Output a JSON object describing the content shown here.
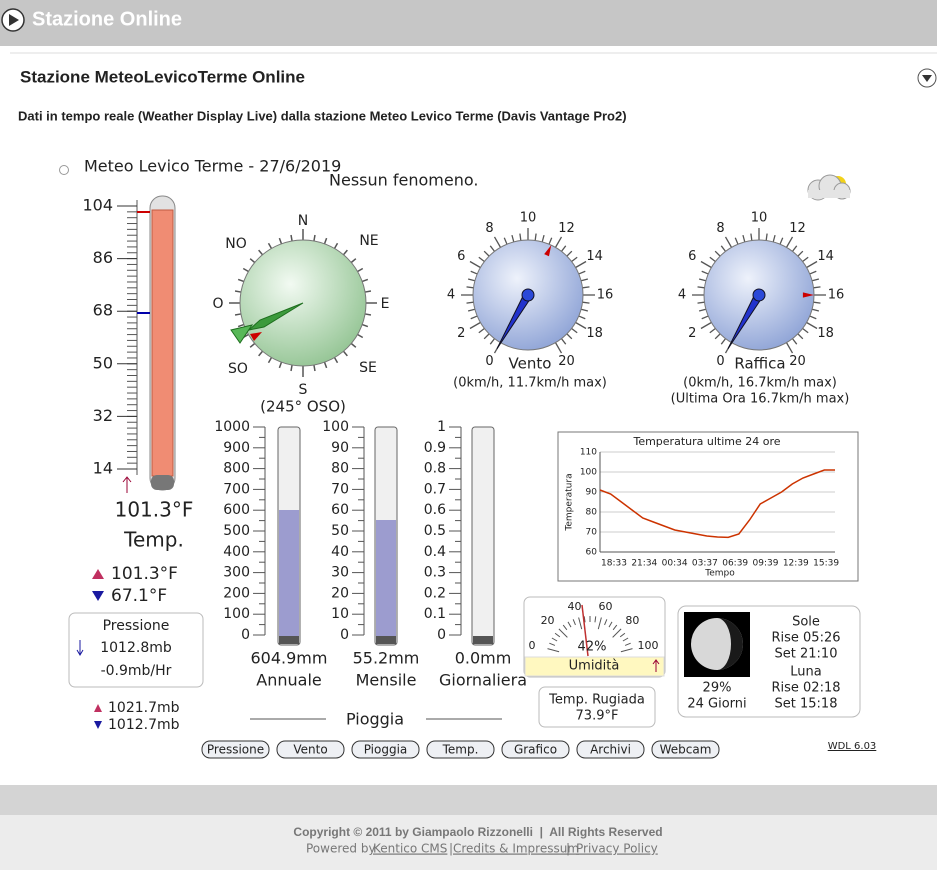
{
  "header": {
    "title": "Stazione Online"
  },
  "section": {
    "title": "Stazione MeteoLevicoTerme Online",
    "subtitle": "Dati in tempo reale (Weather Display Live) dalla stazione Meteo Levico Terme (Davis Vantage Pro2)"
  },
  "live": {
    "station": "Meteo Levico Terme - 27/6/2019",
    "weather": "Nessun fenomeno.",
    "thermometer": {
      "scale": [
        104,
        86,
        68,
        50,
        32,
        14
      ],
      "current": "101.3°F",
      "label": "Temp.",
      "max": "101.3°F",
      "min": "67.1°F"
    },
    "pressure": {
      "label": "Pressione",
      "value": "1012.8mb",
      "trend": "-0.9mb/Hr",
      "max": "1021.7mb",
      "min": "1012.7mb"
    },
    "compass": {
      "points": [
        "N",
        "NE",
        "E",
        "SE",
        "S",
        "SO",
        "O",
        "NO"
      ],
      "reading": "(245° OSO)"
    },
    "wind": {
      "scale": [
        0,
        2,
        4,
        6,
        8,
        10,
        12,
        14,
        16,
        18,
        20
      ],
      "label": "Vento",
      "detail": "(0km/h, 11.7km/h max)"
    },
    "gust": {
      "scale": [
        0,
        2,
        4,
        6,
        8,
        10,
        12,
        14,
        16,
        18,
        20
      ],
      "label": "Raffica",
      "detail": "(0km/h, 16.7km/h max)",
      "hour": "(Ultima Ora 16.7km/h max)"
    },
    "rain": {
      "title": "Pioggia",
      "gauges": [
        {
          "scale": [
            1000,
            900,
            800,
            700,
            600,
            500,
            400,
            300,
            200,
            100,
            0
          ],
          "value": "604.9mm",
          "label": "Annuale"
        },
        {
          "scale": [
            100,
            90,
            80,
            70,
            60,
            50,
            40,
            30,
            20,
            10,
            0
          ],
          "value": "55.2mm",
          "label": "Mensile"
        },
        {
          "scale": [
            1,
            0.9,
            0.8,
            0.7,
            0.6,
            0.5,
            0.4,
            0.3,
            0.2,
            0.1,
            0
          ],
          "value": "0.0mm",
          "label": "Giornaliera"
        }
      ]
    },
    "temp_chart": {
      "type": "line",
      "title": "Temperatura ultime 24 ore",
      "ylabel": "Temperatura",
      "xlabel": "Tempo",
      "ylim": [
        60,
        110
      ],
      "yticks": [
        60,
        70,
        80,
        90,
        100,
        110
      ],
      "xtick_labels": [
        "18:33",
        "21:34",
        "00:34",
        "03:37",
        "06:39",
        "09:39",
        "12:39",
        "15:39"
      ],
      "values": [
        91,
        89,
        85,
        81,
        77,
        75,
        73,
        71,
        70,
        69,
        68,
        67.5,
        67.3,
        69,
        76,
        84,
        87,
        90,
        94,
        97,
        99,
        101,
        101
      ],
      "color": "#cc3300",
      "grid": true
    },
    "humidity": {
      "scale": [
        0,
        20,
        40,
        60,
        80,
        100
      ],
      "value": "42%",
      "label": "Umidità"
    },
    "dew": {
      "label": "Temp. Rugiada",
      "value": "73.9°F"
    },
    "astro": {
      "moon_phase": "29%",
      "moon_age": "24 Giorni",
      "sun": {
        "label": "Sole",
        "rise": "Rise 05:26",
        "set": "Set 21:10"
      },
      "moon": {
        "label": "Luna",
        "rise": "Rise 02:18",
        "set": "Set 15:18"
      }
    },
    "buttons": [
      "Pressione",
      "Vento",
      "Pioggia",
      "Temp.",
      "Grafico",
      "Archivi",
      "Webcam"
    ],
    "version": "WDL 6.03"
  },
  "footer": {
    "copyright": "Copyright © 2011 by Giampaolo Rizzonelli  |  All Rights Reserved",
    "powered_by": "Powered by",
    "separator": "|",
    "links": [
      "Kentico CMS",
      "Credits & Impressum",
      "Privacy Policy"
    ]
  }
}
